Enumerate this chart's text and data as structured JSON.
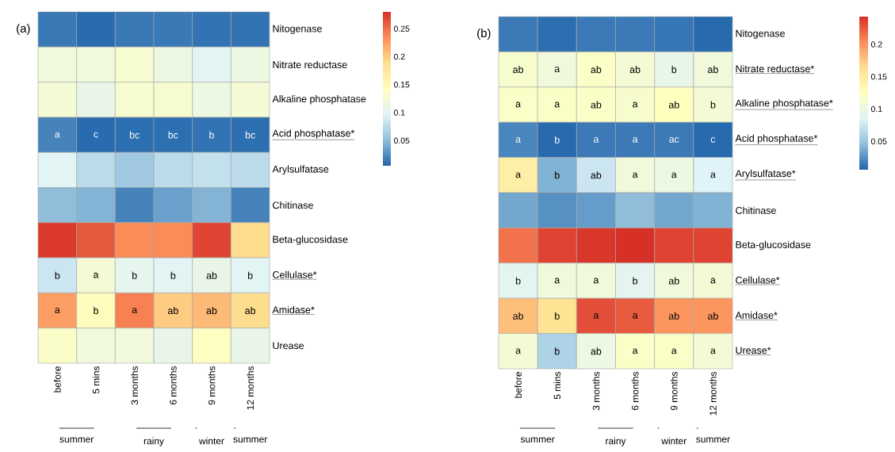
{
  "chart_data": [
    {
      "type": "heatmap",
      "title": "(a)",
      "categories": [
        "before",
        "5 mins",
        "3 months",
        "6 months",
        "9 months",
        "12 months"
      ],
      "y_categories": [
        "Nitogenase",
        "Nitrate reductase",
        "Alkaline phosphatase",
        "Acid phosphatase*",
        "Arylsulfatase",
        "Chitinase",
        "Beta-glucosidase",
        "Cellulase*",
        "Amidase*",
        "Urease"
      ],
      "cells": [
        [
          0.015,
          0.008,
          0.015,
          0.015,
          0.012,
          0.012
        ],
        [
          0.12,
          0.12,
          0.13,
          0.115,
          0.1,
          0.115
        ],
        [
          0.125,
          0.11,
          0.13,
          0.13,
          0.115,
          0.125
        ],
        [
          0.02,
          0.008,
          0.01,
          0.01,
          0.012,
          0.01
        ],
        [
          0.1,
          0.075,
          0.06,
          0.075,
          0.08,
          0.075
        ],
        [
          0.05,
          0.045,
          0.02,
          0.035,
          0.045,
          0.02
        ],
        [
          0.275,
          0.26,
          0.235,
          0.235,
          0.27,
          0.19
        ],
        [
          0.085,
          0.125,
          0.105,
          0.1,
          0.11,
          0.1
        ],
        [
          0.225,
          0.145,
          0.24,
          0.2,
          0.21,
          0.19
        ],
        [
          0.135,
          0.12,
          0.12,
          0.11,
          0.14,
          0.11
        ]
      ],
      "cell_labels": [
        [
          null,
          null,
          null,
          null,
          null,
          null
        ],
        [
          null,
          null,
          null,
          null,
          null,
          null
        ],
        [
          null,
          null,
          null,
          null,
          null,
          null
        ],
        [
          "a",
          "c",
          "bc",
          "bc",
          "b",
          "bc"
        ],
        [
          null,
          null,
          null,
          null,
          null,
          null
        ],
        [
          null,
          null,
          null,
          null,
          null,
          null
        ],
        [
          null,
          null,
          null,
          null,
          null,
          null
        ],
        [
          "b",
          "a",
          "b",
          "b",
          "ab",
          "b"
        ],
        [
          "a",
          "b",
          "a",
          "ab",
          "ab",
          "ab"
        ],
        [
          null,
          null,
          null,
          null,
          null,
          null
        ]
      ],
      "clim": [
        0.005,
        0.28
      ],
      "cticks": [
        0.05,
        0.1,
        0.15,
        0.2,
        0.25
      ],
      "annotations": [
        "summer",
        "rainy",
        "winter",
        "summer"
      ]
    },
    {
      "type": "heatmap",
      "title": "(b)",
      "categories": [
        "before",
        "5 mins",
        "3 months",
        "6 months",
        "9 months",
        "12 months"
      ],
      "y_categories": [
        "Nitogenase",
        "Nitrate reductase*",
        "Alkaline phosphatase*",
        "Acid phosphatase*",
        "Arylsulfatase*",
        "Chitinase",
        "Beta-glucosidase",
        "Cellulase*",
        "Amidase*",
        "Urease*"
      ],
      "cells": [
        [
          0.015,
          0.01,
          0.015,
          0.015,
          0.013,
          0.008
        ],
        [
          0.115,
          0.105,
          0.12,
          0.11,
          0.095,
          0.105
        ],
        [
          0.12,
          0.12,
          0.12,
          0.115,
          0.125,
          0.11
        ],
        [
          0.02,
          0.008,
          0.015,
          0.015,
          0.015,
          0.008
        ],
        [
          0.145,
          0.04,
          0.075,
          0.105,
          0.1,
          0.085
        ],
        [
          0.035,
          0.025,
          0.03,
          0.045,
          0.035,
          0.04
        ],
        [
          0.215,
          0.235,
          0.24,
          0.243,
          0.235,
          0.235
        ],
        [
          0.09,
          0.105,
          0.105,
          0.09,
          0.105,
          0.11
        ],
        [
          0.18,
          0.16,
          0.23,
          0.225,
          0.2,
          0.2
        ],
        [
          0.11,
          0.06,
          0.1,
          0.12,
          0.12,
          0.11
        ]
      ],
      "cell_labels": [
        [
          null,
          null,
          null,
          null,
          null,
          null
        ],
        [
          "ab",
          "a",
          "ab",
          "ab",
          "b",
          "ab"
        ],
        [
          "a",
          "a",
          "ab",
          "a",
          "ab",
          "b"
        ],
        [
          "a",
          "b",
          "a",
          "a",
          "ac",
          "c"
        ],
        [
          "a",
          "b",
          "ab",
          "a",
          "a",
          "a"
        ],
        [
          null,
          null,
          null,
          null,
          null,
          null
        ],
        [
          null,
          null,
          null,
          null,
          null,
          null
        ],
        [
          "b",
          "a",
          "a",
          "b",
          "ab",
          "a"
        ],
        [
          "ab",
          "b",
          "a",
          "a",
          "ab",
          "ab"
        ],
        [
          "a",
          "b",
          "ab",
          "a",
          "a",
          "a"
        ]
      ],
      "clim": [
        0.006,
        0.243
      ],
      "cticks": [
        0.05,
        0.1,
        0.15,
        0.2
      ],
      "annotations": [
        "summer",
        "rainy",
        "winter",
        "summer"
      ]
    }
  ]
}
